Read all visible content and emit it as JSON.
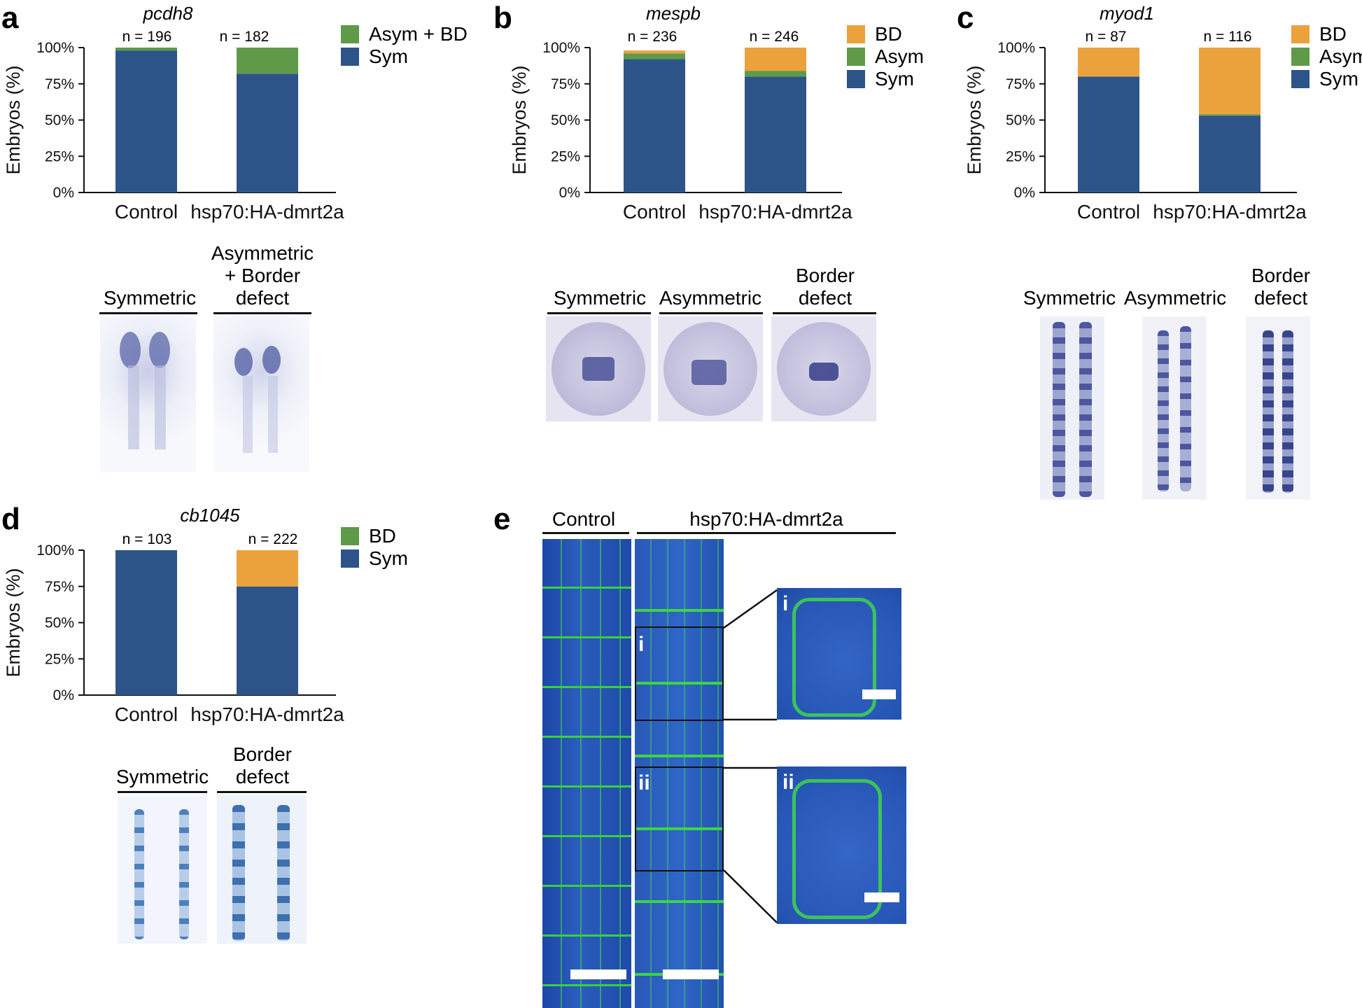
{
  "panels": {
    "a": {
      "letter": "a",
      "gene": "pcdh8",
      "n": [
        "n = 196",
        "n = 182"
      ],
      "legend": [
        "Asym + BD",
        "Sym"
      ],
      "img_labels": [
        "Symmetric",
        "Asymmetric\n+ Border\ndefect"
      ]
    },
    "b": {
      "letter": "b",
      "gene": "mespb",
      "n": [
        "n = 236",
        "n = 246"
      ],
      "legend": [
        "BD",
        "Asym",
        "Sym"
      ],
      "img_labels": [
        "Symmetric",
        "Asymmetric",
        "Border\ndefect"
      ]
    },
    "c": {
      "letter": "c",
      "gene": "myod1",
      "n": [
        "n = 87",
        "n = 116"
      ],
      "legend": [
        "BD",
        "Asym",
        "Sym"
      ],
      "img_labels": [
        "Symmetric",
        "Asymmetric",
        "Border\ndefect"
      ]
    },
    "d": {
      "letter": "d",
      "gene": "cb1045",
      "n": [
        "n = 103",
        "n = 222"
      ],
      "legend": [
        "BD",
        "Sym"
      ],
      "img_labels": [
        "Symmetric",
        "Border\ndefect"
      ]
    },
    "e": {
      "letter": "e",
      "labels": [
        "Control",
        "hsp70:HA-dmrt2a"
      ],
      "insets": [
        "i",
        "ii"
      ]
    }
  },
  "axis": {
    "ylabel": "Embryos (%)",
    "ticks": [
      "100%",
      "75%",
      "50%",
      "25%",
      "0%"
    ]
  },
  "categories": [
    "Control",
    "hsp70:HA-dmrt2a"
  ],
  "colors": {
    "Sym": "#2d5489",
    "Asym": "#5e9a48",
    "BD": "#eba23d",
    "Asym + BD": "#5e9a48"
  },
  "chart_data": [
    {
      "type": "bar",
      "title": "pcdh8",
      "categories": [
        "Control",
        "hsp70:HA-dmrt2a"
      ],
      "ylabel": "Embryos (%)",
      "ylim": [
        0,
        100
      ],
      "stacked": true,
      "legend": "top-right",
      "series": [
        {
          "name": "Sym",
          "values": [
            98,
            82
          ]
        },
        {
          "name": "Asym + BD",
          "values": [
            2,
            18
          ]
        }
      ]
    },
    {
      "type": "bar",
      "title": "mespb",
      "categories": [
        "Control",
        "hsp70:HA-dmrt2a"
      ],
      "ylabel": "Embryos (%)",
      "ylim": [
        0,
        100
      ],
      "stacked": true,
      "legend": "top-right",
      "series": [
        {
          "name": "Sym",
          "values": [
            92,
            80
          ]
        },
        {
          "name": "Asym",
          "values": [
            4,
            4
          ]
        },
        {
          "name": "BD",
          "values": [
            2,
            16
          ]
        }
      ]
    },
    {
      "type": "bar",
      "title": "myod1",
      "categories": [
        "Control",
        "hsp70:HA-dmrt2a"
      ],
      "ylabel": "Embryos (%)",
      "ylim": [
        0,
        100
      ],
      "stacked": true,
      "legend": "top-right",
      "series": [
        {
          "name": "Sym",
          "values": [
            80,
            53
          ]
        },
        {
          "name": "Asym",
          "values": [
            0,
            1
          ]
        },
        {
          "name": "BD",
          "values": [
            20,
            46
          ]
        }
      ]
    },
    {
      "type": "bar",
      "title": "cb1045",
      "categories": [
        "Control",
        "hsp70:HA-dmrt2a"
      ],
      "ylabel": "Embryos (%)",
      "ylim": [
        0,
        100
      ],
      "stacked": true,
      "legend": "top-right",
      "series": [
        {
          "name": "Sym",
          "values": [
            100,
            75
          ]
        },
        {
          "name": "BD",
          "values": [
            0,
            25
          ]
        }
      ]
    }
  ]
}
